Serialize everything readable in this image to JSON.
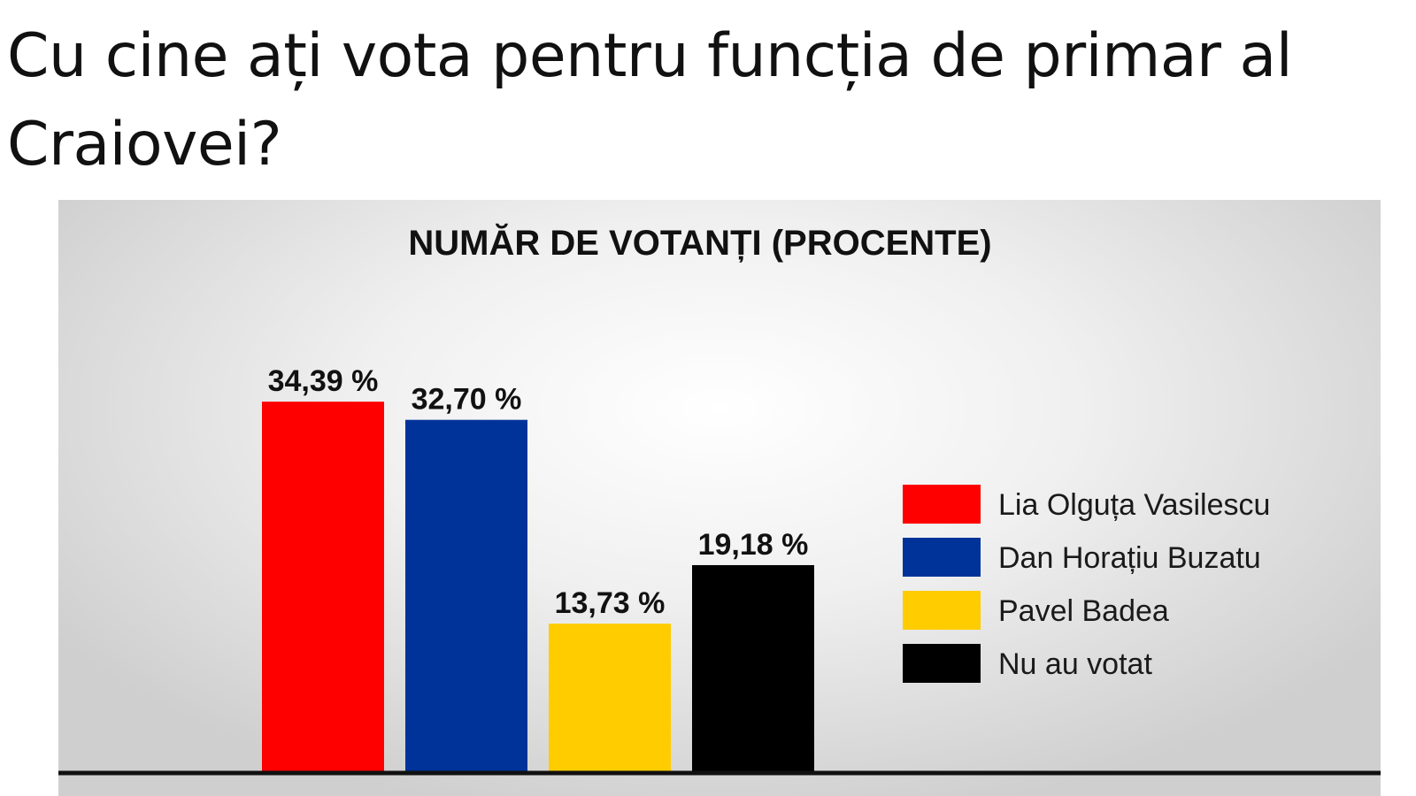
{
  "page": {
    "question": "Cu cine ați vota pentru funcția de primar al Craiovei?"
  },
  "chart_data": {
    "type": "bar",
    "title": "NUMĂR DE VOTANȚI (PROCENTE)",
    "xlabel": "",
    "ylabel": "",
    "ylim": [
      0,
      40
    ],
    "grid": false,
    "legend_position": "right",
    "categories": [
      "Lia Olguța Vasilescu",
      "Dan Horațiu Buzatu",
      "Pavel Badea",
      "Nu au votat"
    ],
    "values": [
      34.39,
      32.7,
      13.73,
      19.18
    ],
    "data_labels": [
      "34,39 %",
      "32,70 %",
      "13,73 %",
      "19,18 %"
    ],
    "colors": [
      "#ff0000",
      "#003399",
      "#ffcc00",
      "#000000"
    ],
    "legend": [
      {
        "label": "Lia Olguța Vasilescu",
        "color": "#ff0000"
      },
      {
        "label": "Dan Horațiu Buzatu",
        "color": "#003399"
      },
      {
        "label": "Pavel Badea",
        "color": "#ffcc00"
      },
      {
        "label": "Nu au votat",
        "color": "#000000"
      }
    ]
  }
}
